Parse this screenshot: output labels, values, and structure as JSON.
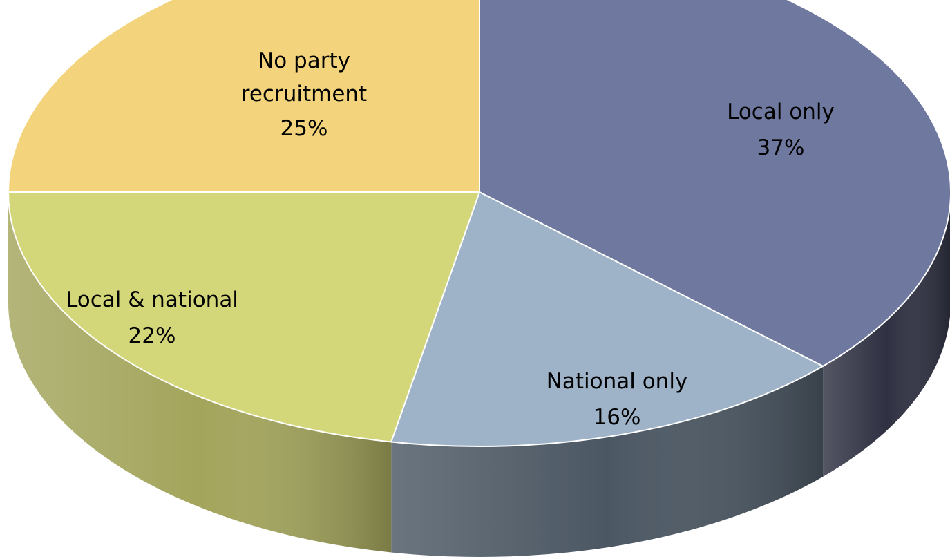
{
  "chart_data": {
    "type": "pie",
    "title": "",
    "style": "3d",
    "start_angle_deg": 90,
    "direction": "clockwise",
    "slices": [
      {
        "name": "Local only",
        "value": 37,
        "label": "37%",
        "color": "#6f799f",
        "side_color": "#2f3142"
      },
      {
        "name": "National only",
        "value": 16,
        "label": "16%",
        "color": "#9eb3c8",
        "side_color": "#4b5763"
      },
      {
        "name": "Local & national",
        "value": 22,
        "label": "22%",
        "color": "#d3d77a",
        "side_color": "#a3a55c"
      },
      {
        "name": "No party recruitment",
        "value": 25,
        "label": "25%",
        "color": "#f3d47c",
        "side_color": "#b8a060"
      }
    ]
  }
}
